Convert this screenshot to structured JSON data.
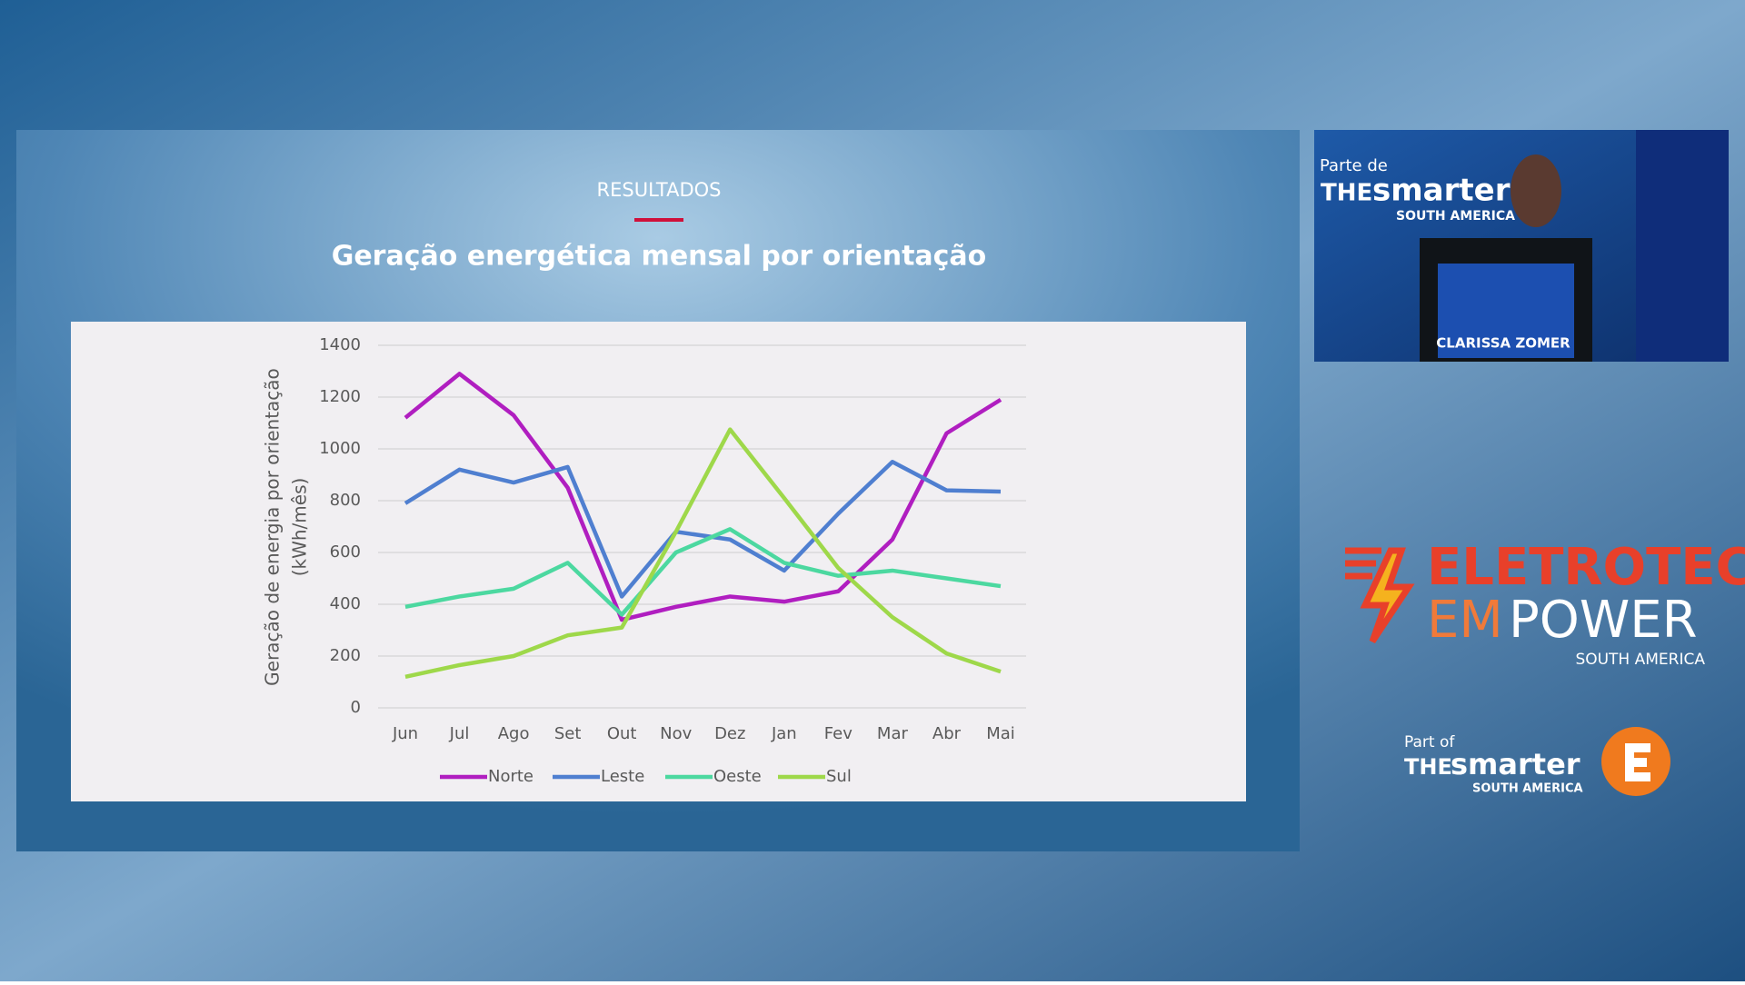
{
  "slide": {
    "section": "RESULTADOS",
    "title": "Geração energética mensal por orientação"
  },
  "chart_data": {
    "type": "line",
    "y_label": [
      "Geração de energia por orientação",
      "(kWh/mês)"
    ],
    "categories": [
      "Jun",
      "Jul",
      "Ago",
      "Set",
      "Out",
      "Nov",
      "Dez",
      "Jan",
      "Fev",
      "Mar",
      "Abr",
      "Mai"
    ],
    "series": [
      {
        "name": "Norte",
        "color": "#b01ec0",
        "values": [
          1120,
          1290,
          1130,
          850,
          340,
          390,
          430,
          410,
          450,
          650,
          1060,
          1190
        ]
      },
      {
        "name": "Leste",
        "color": "#4f7fd0",
        "values": [
          790,
          920,
          870,
          930,
          430,
          680,
          650,
          530,
          750,
          950,
          840,
          835
        ]
      },
      {
        "name": "Oeste",
        "color": "#4cd8a0",
        "values": [
          390,
          430,
          460,
          560,
          360,
          600,
          690,
          560,
          510,
          530,
          500,
          470
        ]
      },
      {
        "name": "Sul",
        "color": "#9ed84a",
        "values": [
          120,
          165,
          200,
          280,
          310,
          680,
          1075,
          810,
          540,
          350,
          210,
          140
        ]
      }
    ],
    "ylim": [
      0,
      1400
    ],
    "yticks": [
      0,
      200,
      400,
      600,
      800,
      1000,
      1200,
      1400
    ],
    "grid": true,
    "legend": "bottom"
  },
  "video": {
    "overlay_part": "Parte de",
    "overlay_the": "THE",
    "overlay_brand": "smarter",
    "overlay_region": "SOUTH AMERICA",
    "podium_name": "CLARISSA ZOMER"
  },
  "branding": {
    "eletrotec": "ELETROTEC",
    "em": "EM",
    "power": "POWER",
    "region": "SOUTH AMERICA",
    "part_of": "Part of",
    "the": "THE",
    "smarter": "smarter",
    "smarter_region": "SOUTH AMERICA"
  }
}
